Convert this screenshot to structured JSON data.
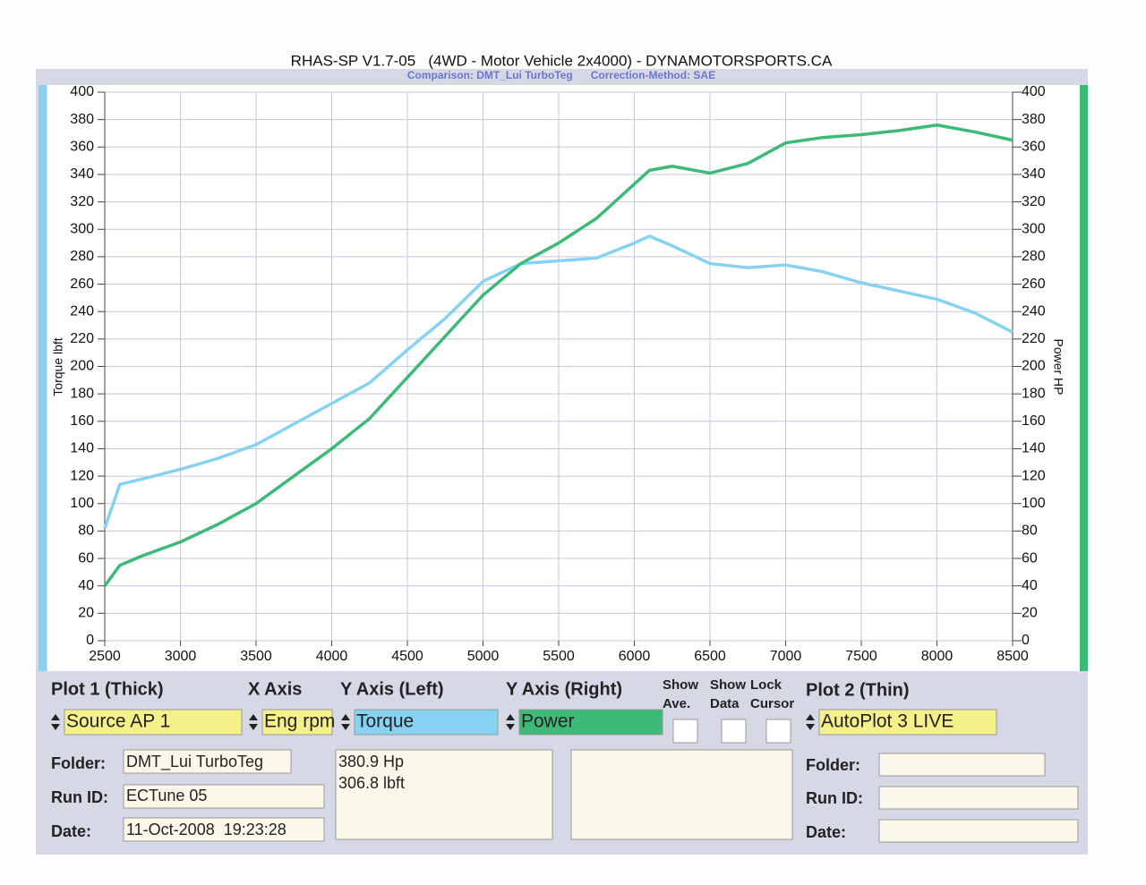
{
  "chart_data": {
    "type": "line",
    "title": "RHAS-SP V1.7-05   (4WD - Motor Vehicle 2x4000) - DYNAMOTORSPORTS.CA",
    "subtitle": "Comparison: DMT_Lui TurboTeg      Correction-Method: SAE",
    "y_label": "Torque lbft",
    "y2_label": "Power HP",
    "x": [
      2500,
      2600,
      2750,
      3000,
      3250,
      3500,
      3750,
      4000,
      4250,
      4500,
      4750,
      5000,
      5250,
      5500,
      5750,
      6000,
      6100,
      6250,
      6500,
      6750,
      7000,
      7250,
      7500,
      7750,
      8000,
      8250,
      8500
    ],
    "series": [
      {
        "name": "Torque",
        "color": "#86d2f2",
        "values": [
          82,
          114,
          118,
          125,
          133,
          143,
          158,
          173,
          188,
          212,
          235,
          262,
          275,
          277,
          279,
          290,
          295,
          288,
          275,
          272,
          274,
          269,
          261,
          255,
          249,
          239,
          225
        ]
      },
      {
        "name": "Power",
        "color": "#3dba78",
        "axis": "y2",
        "values": [
          40,
          55,
          62,
          72,
          85,
          100,
          120,
          140,
          162,
          192,
          222,
          252,
          275,
          290,
          308,
          333,
          343,
          346,
          341,
          348,
          363,
          367,
          369,
          372,
          376,
          371,
          365
        ]
      }
    ],
    "xlim": [
      2500,
      8500
    ],
    "xticks": [
      2500,
      3000,
      3500,
      4000,
      4500,
      5000,
      5500,
      6000,
      6500,
      7000,
      7500,
      8000,
      8500
    ],
    "ylim": [
      0,
      400
    ],
    "yticks": [
      0,
      20,
      40,
      60,
      80,
      100,
      120,
      140,
      160,
      180,
      200,
      220,
      240,
      260,
      280,
      300,
      320,
      340,
      360,
      380,
      400
    ],
    "y2lim": [
      0,
      400
    ],
    "y2ticks": [
      0,
      20,
      40,
      60,
      80,
      100,
      120,
      140,
      160,
      180,
      200,
      220,
      240,
      260,
      280,
      300,
      320,
      340,
      360,
      380,
      400
    ],
    "grid": true
  },
  "panel": {
    "plot1": "Plot 1 (Thick)",
    "x_axis": "X Axis",
    "y_axis_left": "Y Axis (Left)",
    "y_axis_right": "Y Axis (Right)",
    "show_ave": [
      "Show",
      "Ave."
    ],
    "show_data": [
      "Show",
      "Data"
    ],
    "lock_cursor": [
      "Lock",
      "Cursor"
    ],
    "plot2": "Plot 2 (Thin)",
    "source": "Source AP 1",
    "x_select": "Eng rpm",
    "y_left_select": "Torque",
    "y_right_select": "Power",
    "plot2_select": "AutoPlot 3 LIVE",
    "folder_label": "Folder:",
    "run_id_label": "Run ID:",
    "date_label": "Date:",
    "folder": "DMT_Lui TurboTeg",
    "run_id": "ECTune 05",
    "date": "11-Oct-2008  19:23:28",
    "readout": [
      "380.9 Hp",
      "306.8 lbft"
    ],
    "folder2_label": "Folder:",
    "run_id2_label": "Run ID:",
    "date2_label": "Date:"
  }
}
